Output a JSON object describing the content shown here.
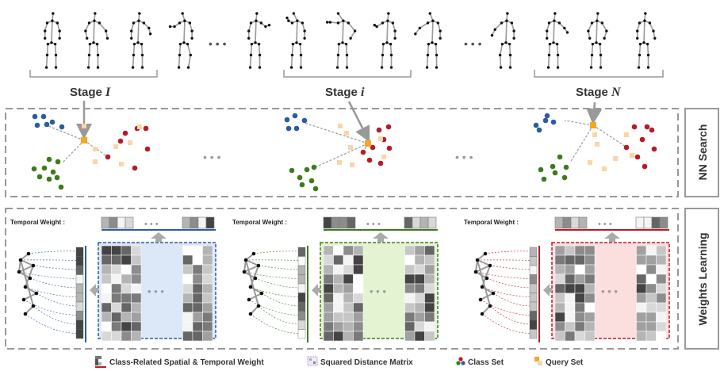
{
  "stages": [
    {
      "prefix": "Stage ",
      "symbol": "I"
    },
    {
      "prefix": "Stage ",
      "symbol": "i"
    },
    {
      "prefix": "Stage ",
      "symbol": "N"
    }
  ],
  "ellipsis": "• • •",
  "side_labels": {
    "nn_search": "NN Search",
    "weights_learning": "Weights Learning"
  },
  "temporal_weight_label": "Temporal Weight :",
  "legend": [
    {
      "label": "Class-Related Spatial & Temporal Weight",
      "icon": "weight-icon"
    },
    {
      "label": "Squared Distance Matrix",
      "icon": "matrix-icon"
    },
    {
      "label": "Class Set",
      "icon": "class-set-icon"
    },
    {
      "label": "Query Set",
      "icon": "query-set-icon"
    }
  ],
  "colors": {
    "blue": "#2a5d9e",
    "green": "#3e7a1e",
    "red": "#b51c28",
    "query": "#fbd4a8",
    "query_center": "#f5a623",
    "matrix_blue_bg": "#dce7f8",
    "matrix_green_bg": "#e4f4d2",
    "matrix_red_bg": "#fbdede",
    "dash_gray": "#999999"
  }
}
